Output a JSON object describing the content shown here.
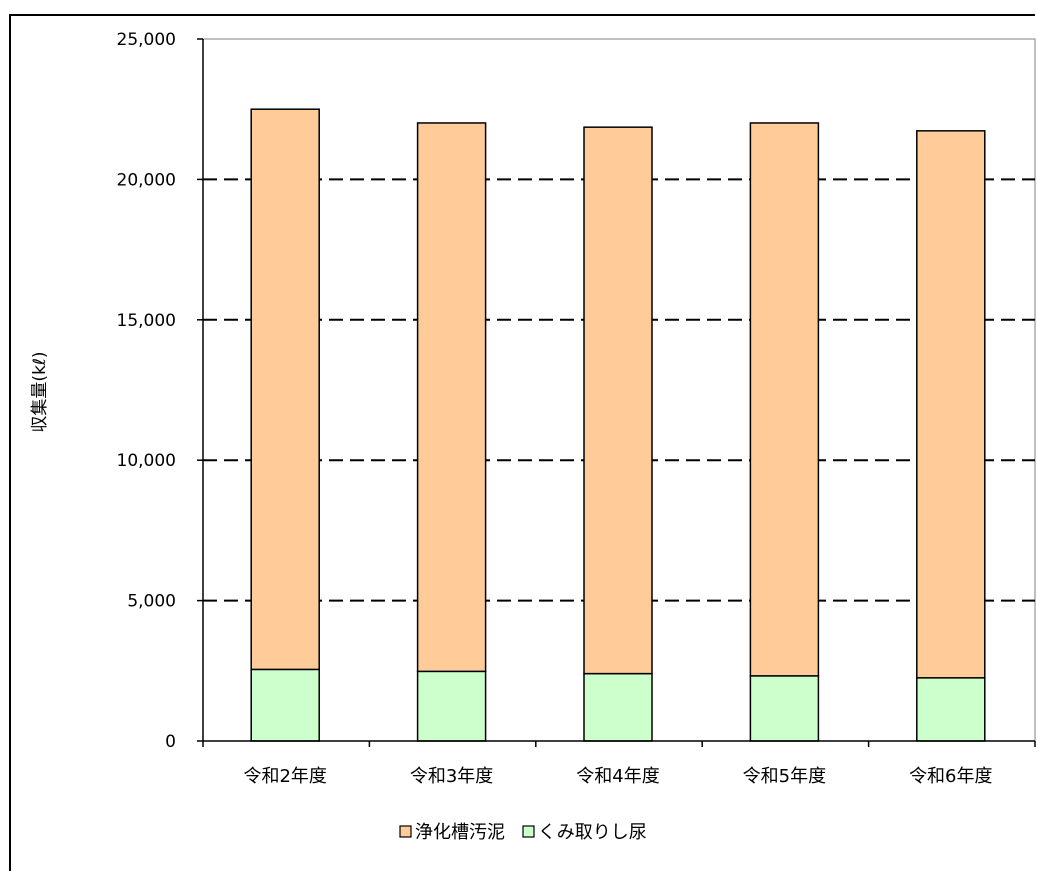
{
  "chart_data": {
    "type": "bar",
    "stacked": true,
    "categories": [
      "令和2年度",
      "令和3年度",
      "令和4年度",
      "令和5年度",
      "令和6年度"
    ],
    "series": [
      {
        "name": "くみ取りし尿",
        "values": [
          2550,
          2480,
          2400,
          2320,
          2250
        ],
        "color": "#ccffcc"
      },
      {
        "name": "浄化槽汚泥",
        "values": [
          19950,
          19530,
          19460,
          19690,
          19480
        ],
        "color": "#ffcc99"
      }
    ],
    "ylabel": "収集量(kℓ)",
    "ylim": [
      0,
      25000
    ],
    "yticks": [
      "0",
      "5,000",
      "10,000",
      "15,000",
      "20,000",
      "25,000"
    ],
    "ytick_values": [
      0,
      5000,
      10000,
      15000,
      20000,
      25000
    ],
    "grid": "dashed horizontal",
    "legend": {
      "position": "bottom",
      "items": [
        "浄化槽汚泥",
        "くみ取りし尿"
      ]
    }
  }
}
